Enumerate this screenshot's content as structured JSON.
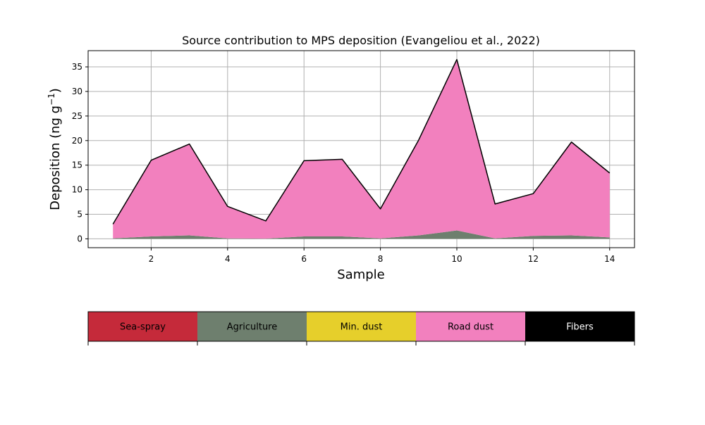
{
  "chart_data": {
    "type": "area",
    "stacked": true,
    "title": "Source contribution to MPS deposition (Evangeliou et al., 2022)",
    "xlabel": "Sample",
    "ylabel": "Deposition (ng g",
    "ylabel_unit_superscript": "−1",
    "ylabel_close": ")",
    "x": [
      1,
      2,
      3,
      4,
      5,
      6,
      7,
      8,
      9,
      10,
      11,
      12,
      13,
      14
    ],
    "xlim": [
      0.35,
      14.65
    ],
    "ylim": [
      -1.8,
      38.3
    ],
    "xticks": [
      2,
      4,
      6,
      8,
      10,
      12,
      14
    ],
    "yticks": [
      0,
      5,
      10,
      15,
      20,
      25,
      30,
      35
    ],
    "grid": true,
    "series": [
      {
        "name": "Sea-spray",
        "color": "#c52a3a",
        "values": [
          0,
          0,
          0,
          0,
          0,
          0,
          0,
          0,
          0,
          0,
          0,
          0,
          0,
          0
        ]
      },
      {
        "name": "Agriculture",
        "color": "#6e7f6e",
        "values": [
          0.1,
          0.5,
          0.7,
          0.1,
          0.05,
          0.5,
          0.5,
          0.1,
          0.7,
          1.7,
          0.1,
          0.6,
          0.7,
          0.3
        ]
      },
      {
        "name": "Min. dust",
        "color": "#e6cf2b",
        "values": [
          0,
          0,
          0,
          0,
          0,
          0,
          0,
          0,
          0,
          0,
          0,
          0,
          0,
          0
        ]
      },
      {
        "name": "Road dust",
        "color": "#f280be",
        "values": [
          2.9,
          15.5,
          18.6,
          6.5,
          3.6,
          15.4,
          15.7,
          6.0,
          19.4,
          34.8,
          7.0,
          8.6,
          19.0,
          13.1
        ]
      },
      {
        "name": "Fibers",
        "color": "#000000",
        "values": [
          0,
          0,
          0,
          0,
          0,
          0,
          0,
          0,
          0,
          0,
          0,
          0,
          0,
          0
        ]
      }
    ],
    "total_line_color": "#000000",
    "grid_color": "#b0b0b0",
    "legend_placement": "bottom",
    "legend_text_colors": [
      "#000000",
      "#000000",
      "#000000",
      "#000000",
      "#ffffff"
    ]
  }
}
